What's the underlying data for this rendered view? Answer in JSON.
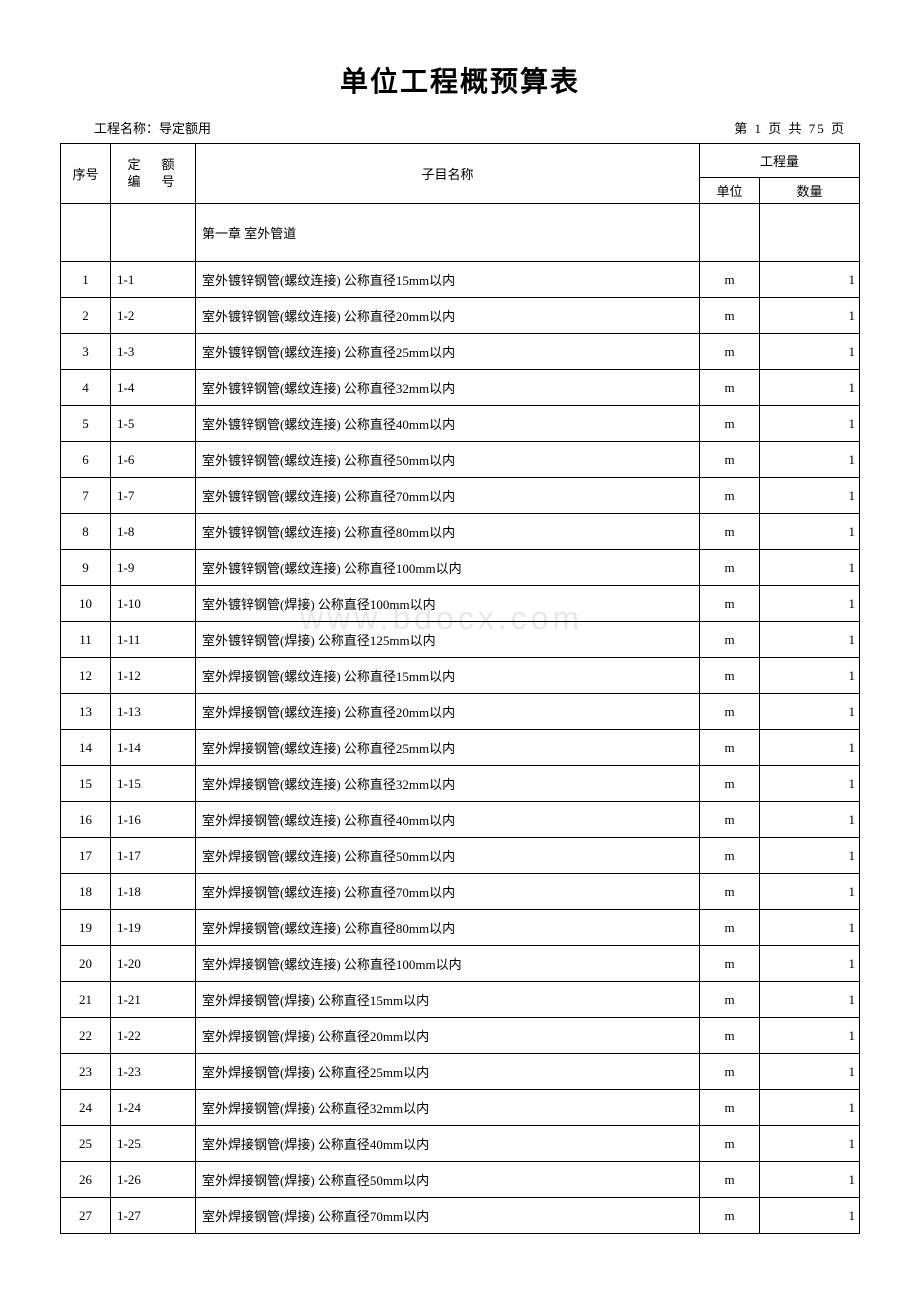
{
  "document": {
    "title": "单位工程概预算表",
    "project_label": "工程名称：",
    "project_name": "导定额用",
    "page_prefix": "第",
    "page_current": "1",
    "page_middle": "页 共",
    "page_total": "75",
    "page_suffix": "页"
  },
  "table": {
    "headers": {
      "seq": "序号",
      "code_line1": "定　额",
      "code_line2": "编　号",
      "name": "子目名称",
      "qty_group": "工程量",
      "unit": "单位",
      "qty": "数量"
    },
    "section_title": "第一章 室外管道",
    "rows": [
      {
        "seq": "1",
        "code": "1-1",
        "name": "室外镀锌钢管(螺纹连接) 公称直径15mm以内",
        "unit": "m",
        "qty": "1"
      },
      {
        "seq": "2",
        "code": "1-2",
        "name": "室外镀锌钢管(螺纹连接) 公称直径20mm以内",
        "unit": "m",
        "qty": "1"
      },
      {
        "seq": "3",
        "code": "1-3",
        "name": "室外镀锌钢管(螺纹连接) 公称直径25mm以内",
        "unit": "m",
        "qty": "1"
      },
      {
        "seq": "4",
        "code": "1-4",
        "name": "室外镀锌钢管(螺纹连接) 公称直径32mm以内",
        "unit": "m",
        "qty": "1"
      },
      {
        "seq": "5",
        "code": "1-5",
        "name": "室外镀锌钢管(螺纹连接) 公称直径40mm以内",
        "unit": "m",
        "qty": "1"
      },
      {
        "seq": "6",
        "code": "1-6",
        "name": "室外镀锌钢管(螺纹连接) 公称直径50mm以内",
        "unit": "m",
        "qty": "1"
      },
      {
        "seq": "7",
        "code": "1-7",
        "name": "室外镀锌钢管(螺纹连接) 公称直径70mm以内",
        "unit": "m",
        "qty": "1"
      },
      {
        "seq": "8",
        "code": "1-8",
        "name": "室外镀锌钢管(螺纹连接) 公称直径80mm以内",
        "unit": "m",
        "qty": "1"
      },
      {
        "seq": "9",
        "code": "1-9",
        "name": "室外镀锌钢管(螺纹连接) 公称直径100mm以内",
        "unit": "m",
        "qty": "1"
      },
      {
        "seq": "10",
        "code": "1-10",
        "name": "室外镀锌钢管(焊接) 公称直径100mm以内",
        "unit": "m",
        "qty": "1"
      },
      {
        "seq": "11",
        "code": "1-11",
        "name": "室外镀锌钢管(焊接) 公称直径125mm以内",
        "unit": "m",
        "qty": "1"
      },
      {
        "seq": "12",
        "code": "1-12",
        "name": "室外焊接钢管(螺纹连接) 公称直径15mm以内",
        "unit": "m",
        "qty": "1"
      },
      {
        "seq": "13",
        "code": "1-13",
        "name": "室外焊接钢管(螺纹连接) 公称直径20mm以内",
        "unit": "m",
        "qty": "1"
      },
      {
        "seq": "14",
        "code": "1-14",
        "name": "室外焊接钢管(螺纹连接) 公称直径25mm以内",
        "unit": "m",
        "qty": "1"
      },
      {
        "seq": "15",
        "code": "1-15",
        "name": "室外焊接钢管(螺纹连接) 公称直径32mm以内",
        "unit": "m",
        "qty": "1"
      },
      {
        "seq": "16",
        "code": "1-16",
        "name": "室外焊接钢管(螺纹连接) 公称直径40mm以内",
        "unit": "m",
        "qty": "1"
      },
      {
        "seq": "17",
        "code": "1-17",
        "name": "室外焊接钢管(螺纹连接) 公称直径50mm以内",
        "unit": "m",
        "qty": "1"
      },
      {
        "seq": "18",
        "code": "1-18",
        "name": "室外焊接钢管(螺纹连接) 公称直径70mm以内",
        "unit": "m",
        "qty": "1"
      },
      {
        "seq": "19",
        "code": "1-19",
        "name": "室外焊接钢管(螺纹连接) 公称直径80mm以内",
        "unit": "m",
        "qty": "1"
      },
      {
        "seq": "20",
        "code": "1-20",
        "name": "室外焊接钢管(螺纹连接) 公称直径100mm以内",
        "unit": "m",
        "qty": "1"
      },
      {
        "seq": "21",
        "code": "1-21",
        "name": "室外焊接钢管(焊接) 公称直径15mm以内",
        "unit": "m",
        "qty": "1"
      },
      {
        "seq": "22",
        "code": "1-22",
        "name": "室外焊接钢管(焊接) 公称直径20mm以内",
        "unit": "m",
        "qty": "1"
      },
      {
        "seq": "23",
        "code": "1-23",
        "name": "室外焊接钢管(焊接) 公称直径25mm以内",
        "unit": "m",
        "qty": "1"
      },
      {
        "seq": "24",
        "code": "1-24",
        "name": "室外焊接钢管(焊接) 公称直径32mm以内",
        "unit": "m",
        "qty": "1"
      },
      {
        "seq": "25",
        "code": "1-25",
        "name": "室外焊接钢管(焊接) 公称直径40mm以内",
        "unit": "m",
        "qty": "1"
      },
      {
        "seq": "26",
        "code": "1-26",
        "name": "室外焊接钢管(焊接) 公称直径50mm以内",
        "unit": "m",
        "qty": "1"
      },
      {
        "seq": "27",
        "code": "1-27",
        "name": "室外焊接钢管(焊接) 公称直径70mm以内",
        "unit": "m",
        "qty": "1"
      }
    ]
  },
  "watermark": "www.bdocx.com"
}
